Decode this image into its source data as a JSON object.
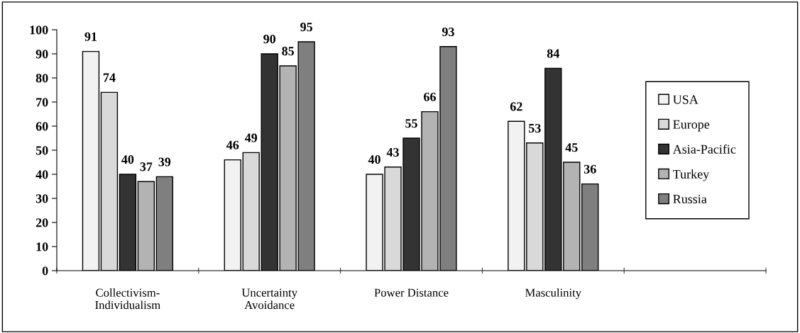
{
  "chart_data": {
    "type": "bar",
    "categories": [
      "Collectivism-\nIndividualism",
      "Uncertainty\nAvoidance",
      "Power Distance",
      "Masculinity",
      null
    ],
    "series": [
      {
        "name": "USA",
        "color": "#f2f2f2",
        "values": [
          91,
          46,
          40,
          62,
          null
        ]
      },
      {
        "name": "Europe",
        "color": "#d9d9d9",
        "values": [
          74,
          49,
          43,
          53,
          null
        ]
      },
      {
        "name": "Asia-Pacific",
        "color": "#333333",
        "values": [
          40,
          90,
          55,
          84,
          null
        ]
      },
      {
        "name": "Turkey",
        "color": "#b3b3b3",
        "values": [
          37,
          85,
          66,
          45,
          null
        ]
      },
      {
        "name": "Russia",
        "color": "#7f7f7f",
        "values": [
          39,
          95,
          93,
          36,
          null
        ]
      }
    ],
    "ylim": [
      0,
      100
    ],
    "yticks": [
      0,
      10,
      20,
      30,
      40,
      50,
      60,
      70,
      80,
      90,
      100
    ],
    "data_labels": true,
    "legend": "right",
    "grid": false
  }
}
